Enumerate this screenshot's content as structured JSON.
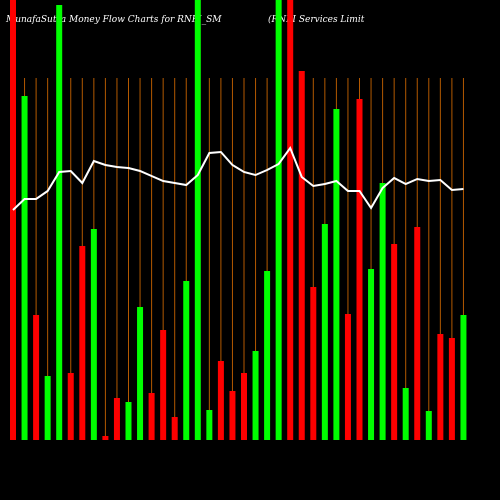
{
  "chart_data": {
    "type": "bar",
    "title": "MunafaSutra  Money Flow  Charts for RNFI_SM",
    "subtitle": "(RNFI Services Limit",
    "categories": [
      null,
      null,
      null,
      null,
      null,
      null,
      null,
      null,
      null,
      null,
      null,
      null,
      null,
      null,
      null,
      null,
      null,
      null,
      null,
      null,
      null,
      null,
      null,
      null,
      null,
      null,
      null,
      null,
      null,
      null,
      null,
      null,
      null,
      null,
      null,
      null,
      null,
      null,
      null,
      null
    ],
    "values": [
      440,
      344,
      125,
      64,
      435,
      67,
      194,
      211,
      4,
      42,
      38,
      133,
      47,
      110,
      23,
      159,
      440,
      30,
      79,
      49,
      67,
      89,
      169,
      440,
      440,
      369,
      153,
      216,
      331,
      126,
      341,
      171,
      257,
      196,
      52,
      213,
      29,
      106,
      102,
      125
    ],
    "colors": [
      "#ff0000",
      "#00ff00",
      "#ff0000",
      "#00ff00",
      "#00ff00",
      "#ff0000",
      "#ff0000",
      "#00ff00",
      "#ff0000",
      "#ff0000",
      "#00ff00",
      "#00ff00",
      "#ff0000",
      "#ff0000",
      "#ff0000",
      "#00ff00",
      "#00ff00",
      "#00ff00",
      "#ff0000",
      "#ff0000",
      "#ff0000",
      "#00ff00",
      "#00ff00",
      "#00ff00",
      "#ff0000",
      "#ff0000",
      "#ff0000",
      "#00ff00",
      "#00ff00",
      "#ff0000",
      "#ff0000",
      "#00ff00",
      "#00ff00",
      "#ff0000",
      "#00ff00",
      "#ff0000",
      "#00ff00",
      "#ff0000",
      "#ff0000",
      "#00ff00"
    ],
    "line_values": [
      230,
      241,
      241,
      249,
      268,
      269,
      257,
      279,
      275,
      273,
      272,
      269,
      264,
      259,
      257,
      255,
      265,
      287,
      288,
      275,
      268,
      265,
      270,
      276,
      292,
      263,
      254,
      256,
      259,
      249,
      249,
      232,
      252,
      262,
      256,
      261,
      259,
      260,
      250,
      251
    ],
    "line_color": "#ffffff",
    "grid_color": "#b35900",
    "ylim": [
      0,
      440
    ]
  }
}
